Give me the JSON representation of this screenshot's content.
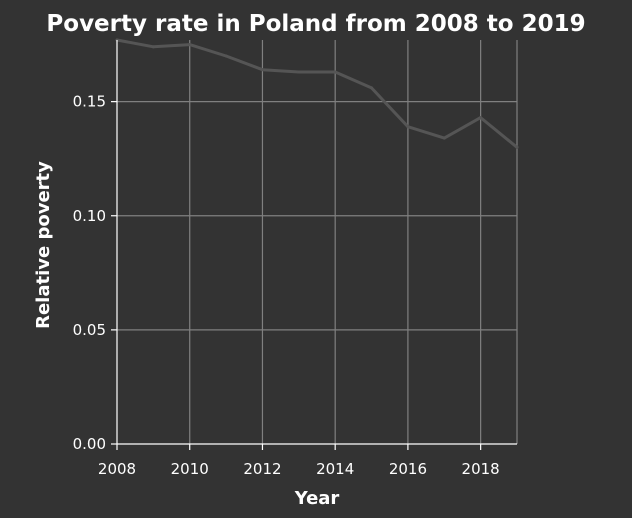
{
  "chart_data": {
    "type": "line",
    "title": "Poverty rate in Poland from 2008 to 2019",
    "xlabel": "Year",
    "ylabel": "Relative poverty",
    "xlim": [
      2008,
      2019
    ],
    "ylim": [
      0,
      0.177
    ],
    "x_ticks": [
      2008,
      2010,
      2012,
      2014,
      2016,
      2018
    ],
    "x_tick_labels": [
      "2008",
      "2010",
      "2012",
      "2014",
      "2016",
      "2018"
    ],
    "y_ticks": [
      0,
      0.05,
      0.1,
      0.15
    ],
    "y_tick_labels": [
      "0.00",
      "0.05",
      "0.10",
      "0.15"
    ],
    "grid": true,
    "series": [
      {
        "name": "Relative poverty",
        "x": [
          2008,
          2009,
          2010,
          2011,
          2012,
          2013,
          2014,
          2015,
          2016,
          2017,
          2018,
          2019
        ],
        "values": [
          0.177,
          0.174,
          0.175,
          0.17,
          0.164,
          0.163,
          0.163,
          0.156,
          0.139,
          0.134,
          0.143,
          0.13
        ]
      }
    ],
    "colors": {
      "background": "#333333",
      "grid": "#808080",
      "line": "#555555",
      "text": "#ffffff",
      "axis": "#ffffff"
    }
  }
}
